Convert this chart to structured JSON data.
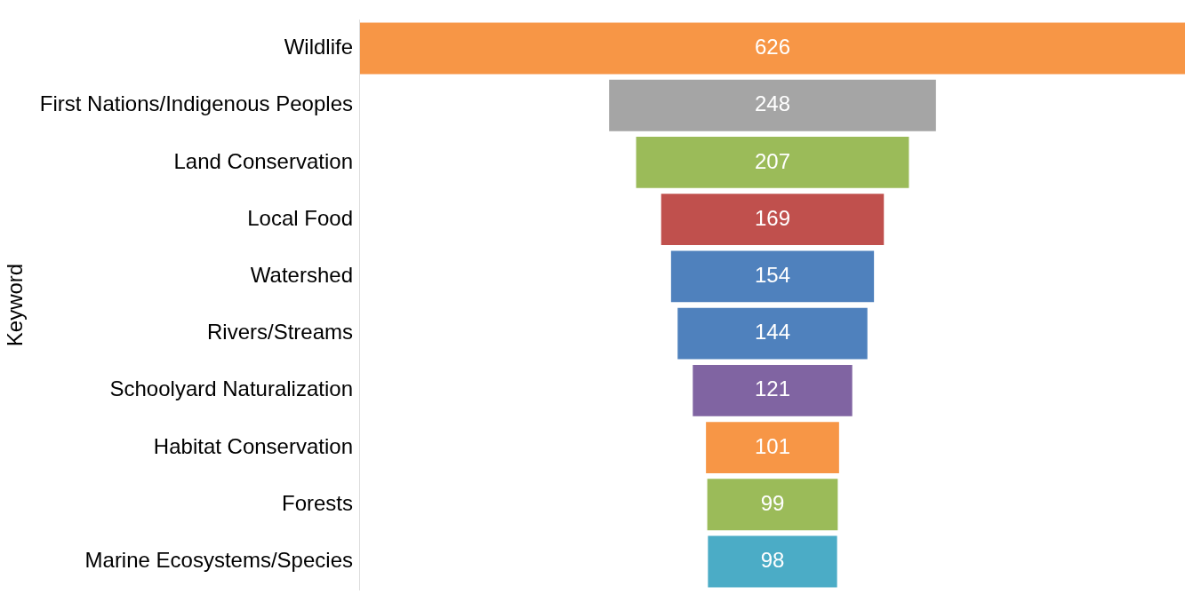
{
  "chart_data": {
    "type": "other",
    "ylabel": "Keyword",
    "categories": [
      "Wildlife",
      "First Nations/Indigenous Peoples",
      "Land Conservation",
      "Local Food",
      "Watershed",
      "Rivers/Streams",
      "Schoolyard Naturalization",
      "Habitat Conservation",
      "Forests",
      "Marine Ecosystems/Species"
    ],
    "values": [
      626,
      248,
      207,
      169,
      154,
      144,
      121,
      101,
      99,
      98
    ],
    "colors": [
      "#f79646",
      "#a5a5a5",
      "#9bbb59",
      "#c0504d",
      "#4f81bd",
      "#4f81bd",
      "#8064a2",
      "#f79646",
      "#9bbb59",
      "#4bacc6"
    ],
    "data_labels": true
  }
}
